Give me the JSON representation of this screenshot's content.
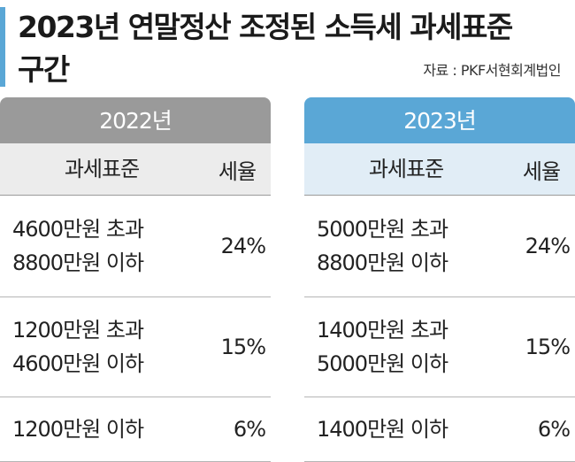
{
  "header": {
    "title_line1": "2023년 연말정산 조정된 소득세 과세표준",
    "title_line2": "구간",
    "source": "자료 : PKF서현회계법인"
  },
  "columns": {
    "base": "과세표준",
    "rate": "세율"
  },
  "colors": {
    "accent": "#5aa7d6",
    "gray_header": "#9a9a9a",
    "gray_sub": "#ececec",
    "blue_sub": "#e1edf6"
  },
  "tables": [
    {
      "year": "2022년",
      "rows": [
        {
          "line1": "4600만원 초과",
          "line2": "8800만원 이하",
          "rate": "24%"
        },
        {
          "line1": "1200만원 초과",
          "line2": "4600만원 이하",
          "rate": "15%"
        },
        {
          "line1": "1200만원 이하",
          "line2": "",
          "rate": "6%"
        }
      ]
    },
    {
      "year": "2023년",
      "rows": [
        {
          "line1": "5000만원 초과",
          "line2": "8800만원 이하",
          "rate": "24%"
        },
        {
          "line1": "1400만원 초과",
          "line2": "5000만원 이하",
          "rate": "15%"
        },
        {
          "line1": "1400만원 이하",
          "line2": "",
          "rate": "6%"
        }
      ]
    }
  ]
}
